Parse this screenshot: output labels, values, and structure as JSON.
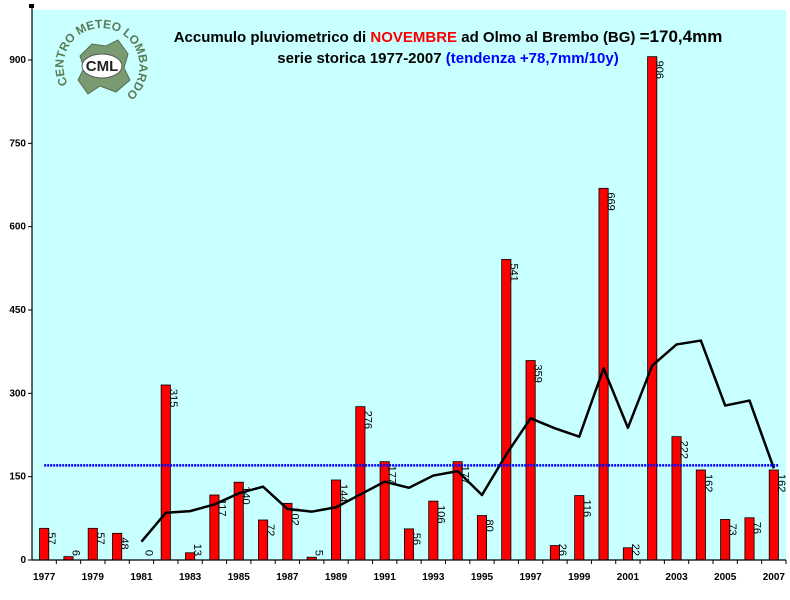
{
  "chart_data": {
    "type": "bar",
    "title": {
      "part1": "Accumulo pluviometrico di ",
      "month": "NOVEMBRE",
      "part2": " ad Olmo al Brembo (BG) ",
      "total": "=170,4mm"
    },
    "subtitle": {
      "text": "serie storica 1977-2007 ",
      "trend": "(tendenza +78,7mm/10y)"
    },
    "xlabel": "",
    "ylabel": "",
    "ylim": [
      0,
      990
    ],
    "yticks": [
      0,
      150,
      300,
      450,
      600,
      750,
      900
    ],
    "x": [
      1977,
      1978,
      1979,
      1980,
      1981,
      1982,
      1983,
      1984,
      1985,
      1986,
      1987,
      1988,
      1989,
      1990,
      1991,
      1992,
      1993,
      1994,
      1995,
      1996,
      1997,
      1998,
      1999,
      2000,
      2001,
      2002,
      2003,
      2004,
      2005,
      2006,
      2007
    ],
    "xtick_labels": [
      "1977",
      "",
      "1979",
      "",
      "1981",
      "",
      "1983",
      "",
      "1985",
      "",
      "1987",
      "",
      "1989",
      "",
      "1991",
      "",
      "1993",
      "",
      "1995",
      "",
      "1997",
      "",
      "1999",
      "",
      "2001",
      "",
      "2003",
      "",
      "2005",
      "",
      "2007"
    ],
    "series": [
      {
        "values": [
          57,
          6,
          57,
          48,
          0,
          315,
          13,
          117,
          140,
          72,
          102,
          5,
          144,
          276,
          177,
          56,
          106,
          177,
          80,
          541,
          359,
          26,
          116,
          669,
          22,
          906,
          222,
          162,
          73,
          76,
          162
        ],
        "labels": [
          "57",
          "6",
          "57",
          "48",
          "0",
          "315",
          "13",
          "117",
          "140",
          "72",
          "102",
          "5",
          "144",
          "276",
          "177",
          "56",
          "106",
          "177",
          "80",
          "541",
          "359",
          "26",
          "116",
          "669",
          "22",
          "906",
          "222",
          "162",
          "73",
          "76",
          "162"
        ],
        "color": "#ff0000"
      },
      {
        "type": "line",
        "color": "#000000",
        "x": [
          1981,
          1982,
          1983,
          1984,
          1985,
          1986,
          1987,
          1988,
          1989,
          1990,
          1991,
          1992,
          1993,
          1994,
          1995,
          1996,
          1997,
          1998,
          1999,
          2000,
          2001,
          2002,
          2003,
          2004,
          2005,
          2006,
          2007
        ],
        "values": [
          33,
          85,
          88,
          100,
          120,
          132,
          92,
          87,
          95,
          118,
          141,
          130,
          152,
          160,
          117,
          190,
          255,
          237,
          222,
          345,
          238,
          350,
          388,
          395,
          278,
          287,
          165
        ]
      },
      {
        "type": "hline",
        "color": "#0000ff",
        "value": 170.4
      }
    ],
    "colors": {
      "plot_bg": "#c8ffff",
      "bar": "#ff0000",
      "month_text": "#ff0000",
      "trend_text": "#0000ff",
      "mean_line": "#0000ff",
      "moving_avg": "#000000"
    }
  },
  "logo": {
    "arc_text": "CENTRO METEO LOMBARDO",
    "badge": "CML"
  }
}
